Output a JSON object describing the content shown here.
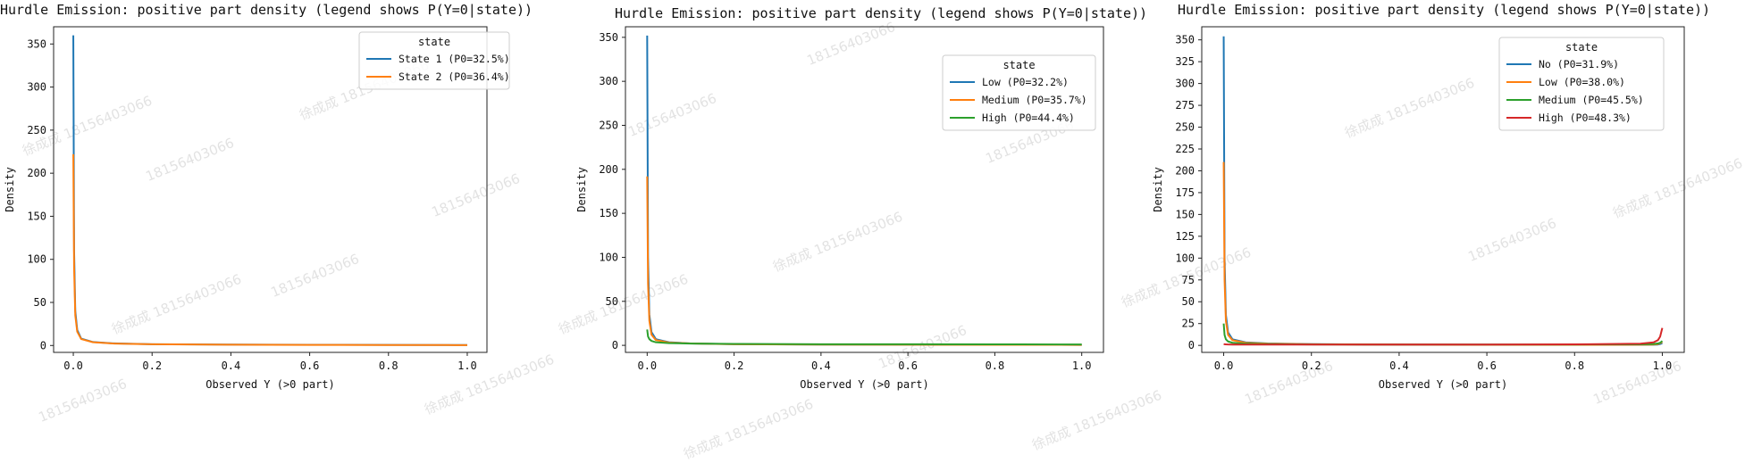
{
  "watermark": {
    "name": "徐成成",
    "number": "18156403066"
  },
  "chart_data": [
    {
      "type": "line",
      "title": "Hurdle Emission: positive part density (legend shows P(Y=0|state))",
      "xlabel": "Observed Y (>0 part)",
      "ylabel": "Density",
      "xlim": [
        -0.05,
        1.05
      ],
      "ylim": [
        -8,
        370
      ],
      "xticks": [
        "0.0",
        "0.2",
        "0.4",
        "0.6",
        "0.8",
        "1.0"
      ],
      "yticks": [
        "0",
        "50",
        "100",
        "150",
        "200",
        "250",
        "300",
        "350"
      ],
      "legend": {
        "title": "state",
        "placement": "top-right"
      },
      "x": [
        0.0,
        0.002,
        0.005,
        0.01,
        0.02,
        0.05,
        0.1,
        0.2,
        0.4,
        0.6,
        0.8,
        0.95,
        1.0
      ],
      "series": [
        {
          "name": "State 1  (P0=32.5%)",
          "color": "#1f77b4",
          "values": [
            360,
            110,
            40,
            18,
            8,
            4,
            2.5,
            1.5,
            1.0,
            0.8,
            0.7,
            0.6,
            0.5
          ]
        },
        {
          "name": "State 2  (P0=36.4%)",
          "color": "#ff7f0e",
          "values": [
            222,
            90,
            35,
            16,
            7.5,
            3.8,
            2.3,
            1.4,
            0.9,
            0.7,
            0.6,
            0.5,
            0.4
          ]
        }
      ]
    },
    {
      "type": "line",
      "title": "Hurdle Emission: positive part density (legend shows P(Y=0|state))",
      "xlabel": "Observed Y (>0 part)",
      "ylabel": "Density",
      "xlim": [
        -0.05,
        1.05
      ],
      "ylim": [
        -8,
        362
      ],
      "xticks": [
        "0.0",
        "0.2",
        "0.4",
        "0.6",
        "0.8",
        "1.0"
      ],
      "yticks": [
        "0",
        "50",
        "100",
        "150",
        "200",
        "250",
        "300",
        "350"
      ],
      "legend": {
        "title": "state",
        "placement": "top-right"
      },
      "x": [
        0.0,
        0.002,
        0.005,
        0.01,
        0.02,
        0.05,
        0.1,
        0.2,
        0.4,
        0.6,
        0.8,
        0.95,
        1.0
      ],
      "series": [
        {
          "name": "Low  (P0=32.2%)",
          "color": "#1f77b4",
          "values": [
            352,
            100,
            35,
            15,
            7,
            3.5,
            2.2,
            1.4,
            0.9,
            0.8,
            0.7,
            0.6,
            0.5
          ]
        },
        {
          "name": "Medium  (P0=35.7%)",
          "color": "#ff7f0e",
          "values": [
            192,
            70,
            28,
            12,
            6,
            3.2,
            2.1,
            1.3,
            0.9,
            0.7,
            0.6,
            0.6,
            0.5
          ]
        },
        {
          "name": "High  (P0=44.4%)",
          "color": "#2ca02c",
          "values": [
            18,
            10,
            7,
            5,
            3.5,
            2.5,
            2.0,
            1.6,
            1.3,
            1.2,
            1.1,
            1.0,
            1.0
          ]
        }
      ]
    },
    {
      "type": "line",
      "title": "Hurdle Emission: positive part density (legend shows P(Y=0|state))",
      "xlabel": "Observed Y (>0 part)",
      "ylabel": "Density",
      "xlim": [
        -0.05,
        1.05
      ],
      "ylim": [
        -8,
        365
      ],
      "xticks": [
        "0.0",
        "0.2",
        "0.4",
        "0.6",
        "0.8",
        "1.0"
      ],
      "yticks": [
        "0",
        "25",
        "50",
        "75",
        "100",
        "125",
        "150",
        "175",
        "200",
        "225",
        "250",
        "275",
        "300",
        "325",
        "350"
      ],
      "legend": {
        "title": "state",
        "placement": "top-right"
      },
      "x": [
        0.0,
        0.002,
        0.005,
        0.01,
        0.02,
        0.05,
        0.1,
        0.2,
        0.4,
        0.6,
        0.8,
        0.95,
        0.98,
        0.99,
        0.995,
        1.0
      ],
      "series": [
        {
          "name": "No  (P0=31.9%)",
          "color": "#1f77b4",
          "values": [
            354,
            100,
            35,
            15,
            7,
            3.5,
            2.2,
            1.4,
            0.9,
            0.8,
            0.7,
            0.7,
            0.8,
            1.0,
            1.5,
            2.5
          ]
        },
        {
          "name": "Low  (P0=38.0%)",
          "color": "#ff7f0e",
          "values": [
            210,
            75,
            28,
            12,
            6,
            3.0,
            2.0,
            1.3,
            0.9,
            0.7,
            0.7,
            0.8,
            1.0,
            1.5,
            2.5,
            4.0
          ]
        },
        {
          "name": "Medium  (P0=45.5%)",
          "color": "#2ca02c",
          "values": [
            25,
            12,
            7,
            4.5,
            3.0,
            2.0,
            1.5,
            1.1,
            0.9,
            0.9,
            1.0,
            1.2,
            1.6,
            2.2,
            3.0,
            5.0
          ]
        },
        {
          "name": "High  (P0=48.3%)",
          "color": "#d62728",
          "values": [
            1.5,
            1.3,
            1.2,
            1.1,
            1.0,
            0.9,
            0.9,
            0.9,
            0.9,
            1.0,
            1.2,
            2.0,
            3.5,
            6.0,
            10.0,
            20.0
          ]
        }
      ]
    }
  ]
}
